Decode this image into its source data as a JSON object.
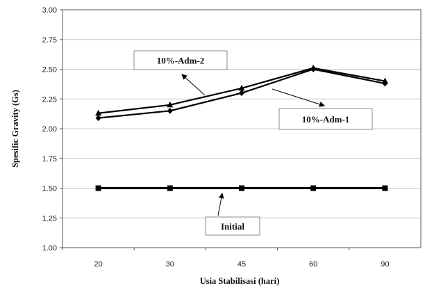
{
  "chart_data": {
    "type": "line",
    "xlabel": "Usia Stabilisasi (hari)",
    "ylabel": "Spesific Gravity (Gs)",
    "categories": [
      "20",
      "30",
      "45",
      "60",
      "90"
    ],
    "ylim": [
      1.0,
      3.0
    ],
    "yticks": [
      "1.00",
      "1.25",
      "1.50",
      "1.75",
      "2.00",
      "2.25",
      "2.50",
      "2.75",
      "3.00"
    ],
    "grid": "horizontal",
    "series": [
      {
        "name": "10%-Adm-2",
        "values": [
          2.13,
          2.2,
          2.34,
          2.51,
          2.4
        ],
        "marker": "triangle",
        "color": "#000000"
      },
      {
        "name": "10%-Adm-1",
        "values": [
          2.09,
          2.15,
          2.3,
          2.5,
          2.38
        ],
        "marker": "diamond",
        "color": "#000000"
      },
      {
        "name": "Initial",
        "values": [
          1.5,
          1.5,
          1.5,
          1.5,
          1.5
        ],
        "marker": "square",
        "color": "#000000"
      }
    ]
  }
}
